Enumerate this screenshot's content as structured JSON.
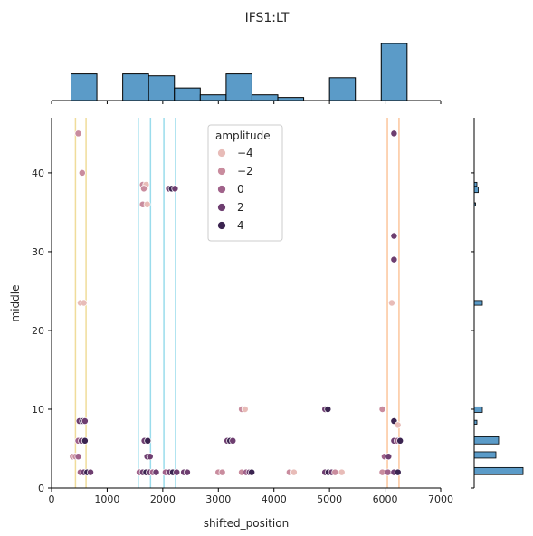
{
  "chart_data": {
    "type": "scatter",
    "title": "IFS1:LT",
    "xlabel": "shifted_position",
    "ylabel": "middle",
    "xlim": [
      0,
      7000
    ],
    "ylim": [
      0,
      47
    ],
    "xticks": [
      0,
      1000,
      2000,
      3000,
      4000,
      5000,
      6000,
      7000
    ],
    "yticks": [
      0,
      10,
      20,
      30,
      40
    ],
    "legend": {
      "title": "amplitude",
      "placement": "top-center",
      "entries": [
        {
          "label": "−4",
          "color": "#e8bcb8"
        },
        {
          "label": "−2",
          "color": "#c98c9e"
        },
        {
          "label": "0",
          "color": "#a0628a"
        },
        {
          "label": "2",
          "color": "#6e3e70"
        },
        {
          "label": "4",
          "color": "#3b2450"
        }
      ]
    },
    "vertical_lines": [
      {
        "x": 430,
        "color": "#f0dc9a"
      },
      {
        "x": 620,
        "color": "#f0dc9a"
      },
      {
        "x": 1560,
        "color": "#9adcec"
      },
      {
        "x": 1780,
        "color": "#9adcec"
      },
      {
        "x": 2020,
        "color": "#9adcec"
      },
      {
        "x": 2230,
        "color": "#9adcec"
      },
      {
        "x": 6040,
        "color": "#fcc69c"
      },
      {
        "x": 6250,
        "color": "#fcc69c"
      }
    ],
    "points": [
      {
        "x": 480,
        "y": 45,
        "amp": -2
      },
      {
        "x": 550,
        "y": 40,
        "amp": -2
      },
      {
        "x": 520,
        "y": 23.5,
        "amp": -4
      },
      {
        "x": 580,
        "y": 23.5,
        "amp": -4
      },
      {
        "x": 500,
        "y": 8.5,
        "amp": 2
      },
      {
        "x": 560,
        "y": 8.5,
        "amp": 4
      },
      {
        "x": 600,
        "y": 8.5,
        "amp": 2
      },
      {
        "x": 480,
        "y": 6,
        "amp": 0
      },
      {
        "x": 540,
        "y": 6,
        "amp": 2
      },
      {
        "x": 600,
        "y": 6,
        "amp": 4
      },
      {
        "x": 380,
        "y": 4,
        "amp": -2
      },
      {
        "x": 430,
        "y": 4,
        "amp": -2
      },
      {
        "x": 480,
        "y": 4,
        "amp": 0
      },
      {
        "x": 520,
        "y": 2,
        "amp": 0
      },
      {
        "x": 580,
        "y": 2,
        "amp": 2
      },
      {
        "x": 640,
        "y": 2,
        "amp": 4
      },
      {
        "x": 700,
        "y": 2,
        "amp": 2
      },
      {
        "x": 1640,
        "y": 38.5,
        "amp": -2
      },
      {
        "x": 1700,
        "y": 38.5,
        "amp": -4
      },
      {
        "x": 1660,
        "y": 38,
        "amp": -2
      },
      {
        "x": 1640,
        "y": 36,
        "amp": -2
      },
      {
        "x": 1720,
        "y": 36,
        "amp": -4
      },
      {
        "x": 1670,
        "y": 6,
        "amp": 2
      },
      {
        "x": 1730,
        "y": 6,
        "amp": 4
      },
      {
        "x": 1720,
        "y": 4,
        "amp": 2
      },
      {
        "x": 1770,
        "y": 4,
        "amp": 2
      },
      {
        "x": 1580,
        "y": 2,
        "amp": 0
      },
      {
        "x": 1640,
        "y": 2,
        "amp": 2
      },
      {
        "x": 1700,
        "y": 2,
        "amp": 4
      },
      {
        "x": 1760,
        "y": 2,
        "amp": 2
      },
      {
        "x": 1820,
        "y": 2,
        "amp": 0
      },
      {
        "x": 1880,
        "y": 2,
        "amp": 2
      },
      {
        "x": 2110,
        "y": 38,
        "amp": 2
      },
      {
        "x": 2160,
        "y": 38,
        "amp": 4
      },
      {
        "x": 2220,
        "y": 38,
        "amp": 2
      },
      {
        "x": 2050,
        "y": 2,
        "amp": 0
      },
      {
        "x": 2120,
        "y": 2,
        "amp": 2
      },
      {
        "x": 2180,
        "y": 2,
        "amp": 4
      },
      {
        "x": 2250,
        "y": 2,
        "amp": 2
      },
      {
        "x": 2380,
        "y": 2,
        "amp": 2
      },
      {
        "x": 2440,
        "y": 2,
        "amp": 2
      },
      {
        "x": 3000,
        "y": 2,
        "amp": -2
      },
      {
        "x": 3070,
        "y": 2,
        "amp": -2
      },
      {
        "x": 3160,
        "y": 6,
        "amp": 2
      },
      {
        "x": 3210,
        "y": 6,
        "amp": 4
      },
      {
        "x": 3260,
        "y": 6,
        "amp": 2
      },
      {
        "x": 3420,
        "y": 10,
        "amp": -2
      },
      {
        "x": 3480,
        "y": 10,
        "amp": -4
      },
      {
        "x": 3420,
        "y": 2,
        "amp": -2
      },
      {
        "x": 3500,
        "y": 2,
        "amp": 0
      },
      {
        "x": 3560,
        "y": 2,
        "amp": 2
      },
      {
        "x": 3600,
        "y": 2,
        "amp": 4
      },
      {
        "x": 4280,
        "y": 2,
        "amp": -2
      },
      {
        "x": 4360,
        "y": 2,
        "amp": -4
      },
      {
        "x": 4920,
        "y": 10,
        "amp": 2
      },
      {
        "x": 4970,
        "y": 10,
        "amp": 4
      },
      {
        "x": 4920,
        "y": 2,
        "amp": 2
      },
      {
        "x": 4980,
        "y": 2,
        "amp": 4
      },
      {
        "x": 5040,
        "y": 2,
        "amp": 2
      },
      {
        "x": 5100,
        "y": 2,
        "amp": -2
      },
      {
        "x": 5220,
        "y": 2,
        "amp": -4
      },
      {
        "x": 5950,
        "y": 10,
        "amp": -2
      },
      {
        "x": 6160,
        "y": 45,
        "amp": 2
      },
      {
        "x": 6160,
        "y": 32,
        "amp": 2
      },
      {
        "x": 6160,
        "y": 29,
        "amp": 2
      },
      {
        "x": 6120,
        "y": 23.5,
        "amp": -4
      },
      {
        "x": 6160,
        "y": 8.5,
        "amp": 4
      },
      {
        "x": 6230,
        "y": 8,
        "amp": -4
      },
      {
        "x": 6160,
        "y": 6,
        "amp": 2
      },
      {
        "x": 6220,
        "y": 6,
        "amp": 0
      },
      {
        "x": 6270,
        "y": 6,
        "amp": 4
      },
      {
        "x": 5990,
        "y": 4,
        "amp": 0
      },
      {
        "x": 6060,
        "y": 4,
        "amp": 2
      },
      {
        "x": 5950,
        "y": 2,
        "amp": -2
      },
      {
        "x": 6050,
        "y": 2,
        "amp": 0
      },
      {
        "x": 6160,
        "y": 2,
        "amp": 2
      },
      {
        "x": 6230,
        "y": 2,
        "amp": 4
      }
    ],
    "marginal_x_hist": {
      "color": "#5b9bc8",
      "bin_edges": [
        350,
        815,
        1280,
        1745,
        2210,
        2675,
        3140,
        3605,
        4070,
        4535,
        5000,
        5465,
        5930,
        6395
      ],
      "counts": [
        7,
        0,
        7,
        6.5,
        3.3,
        1.5,
        7,
        1.5,
        0.8,
        0,
        6,
        0,
        15
      ]
    },
    "marginal_y_hist": {
      "color": "#5b9bc8",
      "bins": [
        {
          "y0": 1.7,
          "y1": 2.6,
          "count": 36
        },
        {
          "y0": 3.8,
          "y1": 4.6,
          "count": 16
        },
        {
          "y0": 5.6,
          "y1": 6.5,
          "count": 18
        },
        {
          "y0": 8.1,
          "y1": 8.6,
          "count": 2
        },
        {
          "y0": 9.6,
          "y1": 10.3,
          "count": 6
        },
        {
          "y0": 23.2,
          "y1": 23.8,
          "count": 6
        },
        {
          "y0": 35.8,
          "y1": 36.2,
          "count": 1
        },
        {
          "y0": 37.5,
          "y1": 38.2,
          "count": 3
        },
        {
          "y0": 38.3,
          "y1": 38.8,
          "count": 2
        }
      ]
    }
  }
}
